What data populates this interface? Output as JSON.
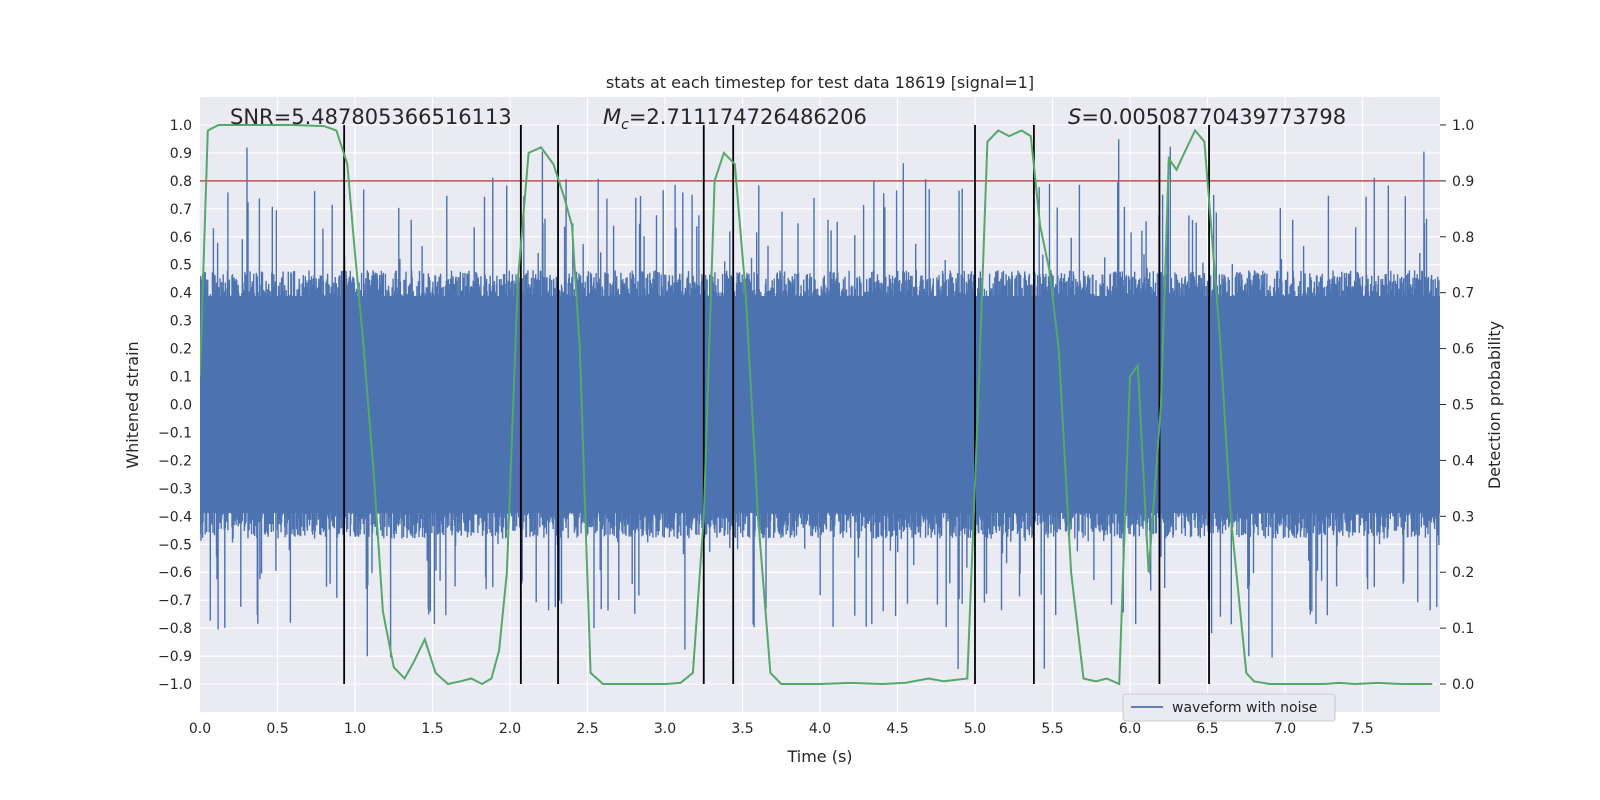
{
  "chart_data": {
    "type": "line",
    "title": "stats at each timestep for test data 18619 [signal=1]",
    "xlabel": "Time (s)",
    "ylabel": "Whitened strain",
    "y2label": "Detection probability",
    "xlim": [
      0.0,
      8.0
    ],
    "ylim": [
      -1.1,
      1.1
    ],
    "y2lim": [
      -0.05,
      1.05
    ],
    "x_ticks": [
      0.0,
      0.5,
      1.0,
      1.5,
      2.0,
      2.5,
      3.0,
      3.5,
      4.0,
      4.5,
      5.0,
      5.5,
      6.0,
      6.5,
      7.0,
      7.5
    ],
    "x_tick_labels": [
      "0.0",
      "0.5",
      "1.0",
      "1.5",
      "2.0",
      "2.5",
      "3.0",
      "3.5",
      "4.0",
      "4.5",
      "5.0",
      "5.5",
      "6.0",
      "6.5",
      "7.0",
      "7.5"
    ],
    "y_ticks": [
      1.0,
      0.9,
      0.8,
      0.7,
      0.6,
      0.5,
      0.4,
      0.3,
      0.2,
      0.1,
      0.0,
      -0.1,
      -0.2,
      -0.3,
      -0.4,
      -0.5,
      -0.6,
      -0.7,
      -0.8,
      -0.9,
      -1.0
    ],
    "y_tick_labels": [
      "1.0",
      "0.9",
      "0.8",
      "0.7",
      "0.6",
      "0.5",
      "0.4",
      "0.3",
      "0.2",
      "0.1",
      "0.0",
      "−0.1",
      "−0.2",
      "−0.3",
      "−0.4",
      "−0.5",
      "−0.6",
      "−0.7",
      "−0.8",
      "−0.9",
      "−1.0"
    ],
    "y2_ticks": [
      1.0,
      0.9,
      0.8,
      0.7,
      0.6,
      0.5,
      0.4,
      0.3,
      0.2,
      0.1,
      0.0
    ],
    "y2_tick_labels": [
      "1.0",
      "0.9",
      "0.8",
      "0.7",
      "0.6",
      "0.5",
      "0.4",
      "0.3",
      "0.2",
      "0.1",
      "0.0"
    ],
    "annotations": {
      "snr": "SNR=5.487805366516113",
      "mc_symbol": "M",
      "mc_sub": "c",
      "mc_value": "=2.711174726486206",
      "s_symbol": "S",
      "s_value": "=0.005087704397737​98"
    },
    "threshold": {
      "value": 0.9,
      "axis": "y2",
      "color": "#c44e52"
    },
    "event_markers_x": [
      0.93,
      2.07,
      2.31,
      3.25,
      3.44,
      5.0,
      5.38,
      6.19,
      6.51
    ],
    "event_markers_range": [
      -1.0,
      1.0
    ],
    "series": [
      {
        "name": "waveform with noise",
        "axis": "y1",
        "color": "#4c72b0",
        "description": "whitened strain time series, noise envelope ~±0.4 with spikes up to ~±0.9",
        "core_amplitude": 0.4,
        "spike_max": 0.95
      },
      {
        "name": "detection probability",
        "axis": "y2",
        "color": "#55a868",
        "x": [
          0.0,
          0.05,
          0.12,
          0.2,
          0.4,
          0.6,
          0.8,
          0.88,
          0.95,
          1.0,
          1.05,
          1.12,
          1.18,
          1.25,
          1.32,
          1.38,
          1.45,
          1.52,
          1.6,
          1.68,
          1.75,
          1.82,
          1.88,
          1.93,
          1.98,
          2.05,
          2.12,
          2.2,
          2.28,
          2.35,
          2.4,
          2.45,
          2.52,
          2.6,
          2.75,
          2.9,
          3.0,
          3.1,
          3.18,
          3.25,
          3.32,
          3.38,
          3.45,
          3.52,
          3.6,
          3.68,
          3.75,
          3.9,
          4.0,
          4.2,
          4.4,
          4.55,
          4.7,
          4.8,
          4.95,
          5.02,
          5.08,
          5.15,
          5.22,
          5.3,
          5.36,
          5.42,
          5.48,
          5.54,
          5.62,
          5.7,
          5.78,
          5.85,
          5.93,
          6.0,
          6.05,
          6.12,
          6.2,
          6.25,
          6.3,
          6.35,
          6.42,
          6.48,
          6.52,
          6.58,
          6.65,
          6.75,
          6.8,
          6.9,
          7.0,
          7.1,
          7.25,
          7.35,
          7.45,
          7.6,
          7.75,
          7.95
        ],
        "y": [
          0.55,
          0.99,
          1.0,
          1.0,
          1.0,
          1.0,
          0.998,
          0.99,
          0.93,
          0.77,
          0.62,
          0.38,
          0.13,
          0.03,
          0.01,
          0.04,
          0.08,
          0.02,
          0.0,
          0.005,
          0.01,
          0.0,
          0.01,
          0.06,
          0.2,
          0.72,
          0.95,
          0.96,
          0.93,
          0.87,
          0.82,
          0.6,
          0.02,
          0.0,
          0.0,
          0.0,
          0.0,
          0.002,
          0.02,
          0.3,
          0.9,
          0.95,
          0.93,
          0.7,
          0.3,
          0.02,
          0.0,
          0.0,
          0.0,
          0.002,
          0.0,
          0.002,
          0.01,
          0.005,
          0.01,
          0.5,
          0.97,
          0.99,
          0.98,
          0.99,
          0.98,
          0.82,
          0.74,
          0.6,
          0.2,
          0.01,
          0.005,
          0.01,
          0.0,
          0.55,
          0.57,
          0.2,
          0.5,
          0.94,
          0.92,
          0.95,
          0.99,
          0.97,
          0.83,
          0.62,
          0.3,
          0.02,
          0.005,
          0.0,
          0.0,
          0.0,
          0.0,
          0.002,
          0.0,
          0.002,
          0.0,
          0.0
        ]
      }
    ],
    "legend": {
      "location": "lower-right",
      "entries": [
        "waveform with noise"
      ]
    },
    "grid": true
  }
}
